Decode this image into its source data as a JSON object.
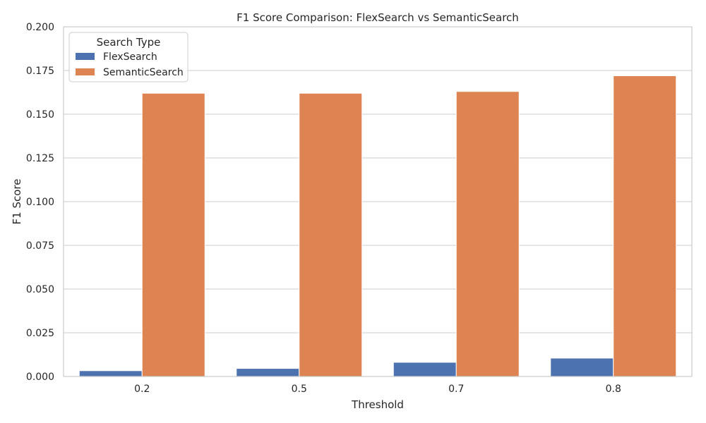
{
  "chart_data": {
    "type": "bar",
    "title": "F1 Score Comparison: FlexSearch vs SemanticSearch",
    "xlabel": "Threshold",
    "ylabel": "F1 Score",
    "categories": [
      "0.2",
      "0.5",
      "0.7",
      "0.8"
    ],
    "series": [
      {
        "name": "FlexSearch",
        "values": [
          0.0033,
          0.0046,
          0.0081,
          0.0105
        ],
        "color": "#4c72b0"
      },
      {
        "name": "SemanticSearch",
        "values": [
          0.162,
          0.162,
          0.163,
          0.172
        ],
        "color": "#dd8452"
      }
    ],
    "ylim": [
      0,
      0.2
    ],
    "yticks": [
      "0.000",
      "0.025",
      "0.050",
      "0.075",
      "0.100",
      "0.125",
      "0.150",
      "0.175",
      "0.200"
    ],
    "grid": true,
    "legend": {
      "title": "Search Type",
      "placement": "top-left"
    }
  }
}
